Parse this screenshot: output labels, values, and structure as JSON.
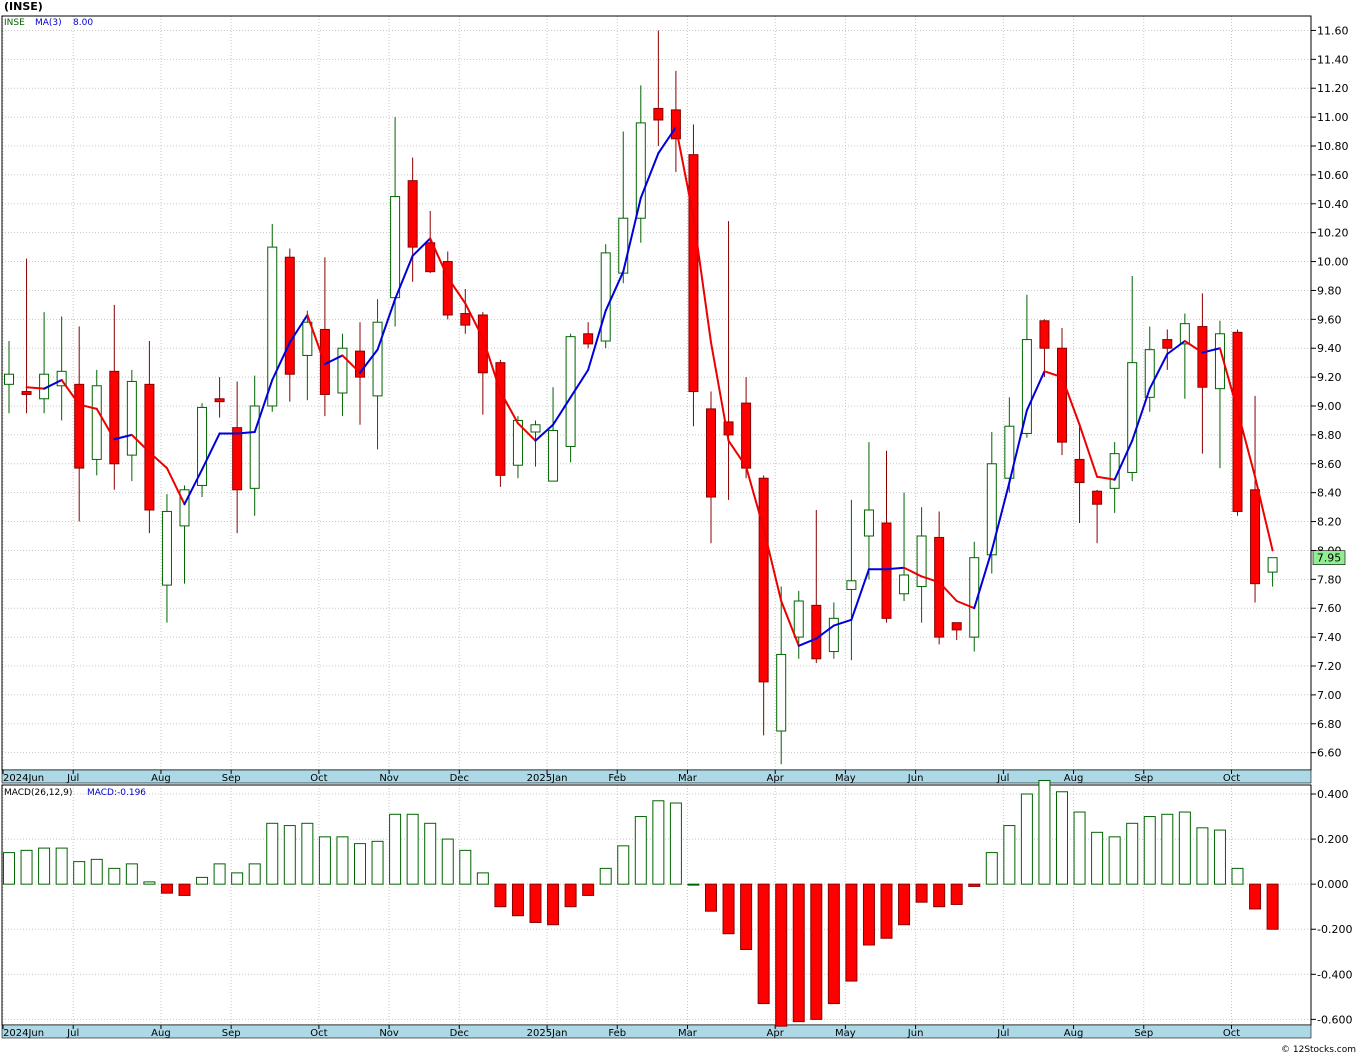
{
  "header": {
    "symbol_title": "(INSE)",
    "legend_symbol": "INSE",
    "legend_ma": "MA(3)",
    "legend_ma_value": "8.00",
    "macd_label": "MACD(26,12,9)",
    "macd_value_label": "MACD:-0.196",
    "last_price_label": "7.95",
    "watermark": "© 12Stocks.com"
  },
  "colors": {
    "up_candle_stroke": "#006400",
    "down_candle_fill": "#ff0000",
    "ma_up": "#0000dd",
    "ma_down": "#ee0000",
    "grid": "#c8c8c8",
    "axis_bar": "#add8e6",
    "last_price_box": "#90ee90"
  },
  "chart_data": [
    {
      "type": "candlestick",
      "title": "(INSE)",
      "series_name": "INSE",
      "overlay": {
        "name": "MA(3)",
        "last_value": 8.0
      },
      "ylim": [
        6.48,
        11.7
      ],
      "y_ticks": [
        "6.60",
        "6.80",
        "7.00",
        "7.20",
        "7.40",
        "7.60",
        "7.80",
        "8.00",
        "8.20",
        "8.40",
        "8.60",
        "8.80",
        "9.00",
        "9.20",
        "9.40",
        "9.60",
        "9.80",
        "10.00",
        "10.20",
        "10.40",
        "10.60",
        "10.80",
        "11.00",
        "11.20",
        "11.40",
        "11.60"
      ],
      "x_tick_labels": [
        "2024Jun",
        "Jul",
        "Aug",
        "Sep",
        "Oct",
        "Nov",
        "Dec",
        "2025Jan",
        "Feb",
        "Mar",
        "Apr",
        "May",
        "Jun",
        "Jul",
        "Aug",
        "Sep",
        "Oct"
      ],
      "x_tick_weeks": [
        0,
        4,
        9,
        13,
        18,
        22,
        26,
        31,
        35,
        39,
        44,
        48,
        52,
        57,
        61,
        65,
        70
      ],
      "last_price": 7.95,
      "weeks": [
        {
          "o": 9.15,
          "h": 9.45,
          "l": 8.95,
          "c": 9.22
        },
        {
          "o": 9.1,
          "h": 10.02,
          "l": 8.95,
          "c": 9.08
        },
        {
          "o": 9.05,
          "h": 9.65,
          "l": 8.95,
          "c": 9.22
        },
        {
          "o": 9.14,
          "h": 9.62,
          "l": 8.9,
          "c": 9.24
        },
        {
          "o": 9.15,
          "h": 9.55,
          "l": 8.2,
          "c": 8.57
        },
        {
          "o": 8.63,
          "h": 9.25,
          "l": 8.52,
          "c": 9.14
        },
        {
          "o": 9.24,
          "h": 9.7,
          "l": 8.42,
          "c": 8.6
        },
        {
          "o": 8.66,
          "h": 9.25,
          "l": 8.48,
          "c": 9.17
        },
        {
          "o": 9.15,
          "h": 9.45,
          "l": 8.12,
          "c": 8.28
        },
        {
          "o": 7.76,
          "h": 8.39,
          "l": 7.5,
          "c": 8.27
        },
        {
          "o": 8.17,
          "h": 8.45,
          "l": 7.77,
          "c": 8.42
        },
        {
          "o": 8.45,
          "h": 9.02,
          "l": 8.37,
          "c": 8.99
        },
        {
          "o": 9.05,
          "h": 9.2,
          "l": 8.92,
          "c": 9.03
        },
        {
          "o": 8.85,
          "h": 9.17,
          "l": 8.12,
          "c": 8.42
        },
        {
          "o": 8.43,
          "h": 9.21,
          "l": 8.24,
          "c": 9.0
        },
        {
          "o": 9.0,
          "h": 10.26,
          "l": 8.96,
          "c": 10.1
        },
        {
          "o": 10.03,
          "h": 10.09,
          "l": 9.03,
          "c": 9.22
        },
        {
          "o": 9.35,
          "h": 9.66,
          "l": 9.04,
          "c": 9.58
        },
        {
          "o": 9.53,
          "h": 10.03,
          "l": 8.93,
          "c": 9.08
        },
        {
          "o": 9.09,
          "h": 9.5,
          "l": 8.93,
          "c": 9.4
        },
        {
          "o": 9.38,
          "h": 9.58,
          "l": 8.87,
          "c": 9.2
        },
        {
          "o": 9.07,
          "h": 9.74,
          "l": 8.7,
          "c": 9.58
        },
        {
          "o": 9.75,
          "h": 11.0,
          "l": 9.55,
          "c": 10.45
        },
        {
          "o": 10.56,
          "h": 10.72,
          "l": 9.86,
          "c": 10.1
        },
        {
          "o": 10.13,
          "h": 10.35,
          "l": 9.92,
          "c": 9.93
        },
        {
          "o": 10.0,
          "h": 10.07,
          "l": 9.6,
          "c": 9.63
        },
        {
          "o": 9.64,
          "h": 9.81,
          "l": 9.5,
          "c": 9.56
        },
        {
          "o": 9.63,
          "h": 9.65,
          "l": 8.94,
          "c": 9.23
        },
        {
          "o": 9.3,
          "h": 9.32,
          "l": 8.44,
          "c": 8.52
        },
        {
          "o": 8.59,
          "h": 8.93,
          "l": 8.5,
          "c": 8.9
        },
        {
          "o": 8.82,
          "h": 8.9,
          "l": 8.58,
          "c": 8.87
        },
        {
          "o": 8.48,
          "h": 9.13,
          "l": 8.48,
          "c": 8.83
        },
        {
          "o": 8.72,
          "h": 9.5,
          "l": 8.61,
          "c": 9.48
        },
        {
          "o": 9.5,
          "h": 9.58,
          "l": 9.4,
          "c": 9.43
        },
        {
          "o": 9.45,
          "h": 10.12,
          "l": 9.4,
          "c": 10.06
        },
        {
          "o": 9.92,
          "h": 10.9,
          "l": 9.85,
          "c": 10.3
        },
        {
          "o": 10.3,
          "h": 11.22,
          "l": 10.13,
          "c": 10.96
        },
        {
          "o": 11.06,
          "h": 11.6,
          "l": 10.8,
          "c": 10.98
        },
        {
          "o": 11.05,
          "h": 11.32,
          "l": 10.62,
          "c": 10.85
        },
        {
          "o": 10.74,
          "h": 10.95,
          "l": 8.86,
          "c": 9.1
        },
        {
          "o": 8.98,
          "h": 9.1,
          "l": 8.05,
          "c": 8.37
        },
        {
          "o": 8.89,
          "h": 10.28,
          "l": 8.35,
          "c": 8.8
        },
        {
          "o": 9.02,
          "h": 9.2,
          "l": 8.5,
          "c": 8.57
        },
        {
          "o": 8.5,
          "h": 8.52,
          "l": 6.72,
          "c": 7.09
        },
        {
          "o": 6.75,
          "h": 7.75,
          "l": 6.52,
          "c": 7.28
        },
        {
          "o": 7.4,
          "h": 7.72,
          "l": 7.25,
          "c": 7.65
        },
        {
          "o": 7.62,
          "h": 8.28,
          "l": 7.22,
          "c": 7.25
        },
        {
          "o": 7.3,
          "h": 7.64,
          "l": 7.25,
          "c": 7.53
        },
        {
          "o": 7.73,
          "h": 8.35,
          "l": 7.24,
          "c": 7.79
        },
        {
          "o": 8.1,
          "h": 8.75,
          "l": 7.8,
          "c": 8.28
        },
        {
          "o": 8.19,
          "h": 8.69,
          "l": 7.5,
          "c": 7.53
        },
        {
          "o": 7.7,
          "h": 8.4,
          "l": 7.65,
          "c": 7.83
        },
        {
          "o": 7.75,
          "h": 8.3,
          "l": 7.5,
          "c": 8.1
        },
        {
          "o": 8.09,
          "h": 8.27,
          "l": 7.35,
          "c": 7.4
        },
        {
          "o": 7.5,
          "h": 7.5,
          "l": 7.38,
          "c": 7.45
        },
        {
          "o": 7.4,
          "h": 8.06,
          "l": 7.3,
          "c": 7.95
        },
        {
          "o": 7.97,
          "h": 8.82,
          "l": 7.84,
          "c": 8.6
        },
        {
          "o": 8.5,
          "h": 9.06,
          "l": 8.4,
          "c": 8.86
        },
        {
          "o": 8.81,
          "h": 9.77,
          "l": 8.78,
          "c": 9.46
        },
        {
          "o": 9.59,
          "h": 9.6,
          "l": 9.2,
          "c": 9.4
        },
        {
          "o": 9.4,
          "h": 9.54,
          "l": 8.66,
          "c": 8.75
        },
        {
          "o": 8.63,
          "h": 8.87,
          "l": 8.19,
          "c": 8.47
        },
        {
          "o": 8.41,
          "h": 8.42,
          "l": 8.05,
          "c": 8.32
        },
        {
          "o": 8.43,
          "h": 8.75,
          "l": 8.26,
          "c": 8.67
        },
        {
          "o": 8.54,
          "h": 9.9,
          "l": 8.48,
          "c": 9.3
        },
        {
          "o": 9.06,
          "h": 9.55,
          "l": 8.96,
          "c": 9.39
        },
        {
          "o": 9.46,
          "h": 9.53,
          "l": 9.25,
          "c": 9.4
        },
        {
          "o": 9.43,
          "h": 9.64,
          "l": 9.05,
          "c": 9.57
        },
        {
          "o": 9.55,
          "h": 9.78,
          "l": 8.67,
          "c": 9.13
        },
        {
          "o": 9.12,
          "h": 9.59,
          "l": 8.57,
          "c": 9.5
        },
        {
          "o": 9.51,
          "h": 9.53,
          "l": 8.24,
          "c": 8.27
        },
        {
          "o": 8.42,
          "h": 9.07,
          "l": 7.64,
          "c": 7.77
        },
        {
          "o": 7.85,
          "h": 7.95,
          "l": 7.75,
          "c": 7.95
        }
      ],
      "ma": [
        null,
        9.13,
        9.12,
        9.18,
        9.01,
        8.98,
        8.77,
        8.8,
        8.68,
        8.57,
        8.32,
        8.56,
        8.81,
        8.81,
        8.82,
        9.18,
        9.44,
        9.63,
        9.29,
        9.35,
        9.23,
        9.39,
        9.74,
        10.04,
        10.16,
        9.89,
        9.71,
        9.47,
        9.1,
        8.88,
        8.76,
        8.87,
        9.06,
        9.25,
        9.66,
        9.93,
        10.44,
        10.75,
        10.93,
        10.31,
        9.44,
        8.76,
        8.58,
        8.15,
        7.65,
        7.34,
        7.39,
        7.48,
        7.52,
        7.87,
        7.87,
        7.88,
        7.82,
        7.78,
        7.65,
        7.6,
        8.0,
        8.47,
        8.97,
        9.24,
        9.2,
        8.87,
        8.51,
        8.49,
        8.76,
        9.12,
        9.36,
        9.45,
        9.37,
        9.4,
        8.97,
        8.51,
        8.0
      ]
    },
    {
      "type": "bar",
      "title": "MACD(26,12,9)",
      "series_name": "MACD",
      "last_value": -0.196,
      "ylim": [
        -0.625,
        0.44
      ],
      "y_ticks": [
        "-0.600",
        "-0.400",
        "-0.200",
        "0.000",
        "0.200",
        "0.400"
      ],
      "values": [
        0.14,
        0.15,
        0.16,
        0.16,
        0.1,
        0.11,
        0.07,
        0.09,
        0.01,
        -0.04,
        -0.05,
        0.03,
        0.09,
        0.05,
        0.09,
        0.27,
        0.26,
        0.27,
        0.21,
        0.21,
        0.18,
        0.19,
        0.31,
        0.31,
        0.27,
        0.2,
        0.15,
        0.05,
        -0.1,
        -0.14,
        -0.17,
        -0.18,
        -0.1,
        -0.05,
        0.07,
        0.17,
        0.3,
        0.37,
        0.36,
        0.0,
        -0.12,
        -0.22,
        -0.29,
        -0.53,
        -0.63,
        -0.61,
        -0.6,
        -0.53,
        -0.43,
        -0.27,
        -0.24,
        -0.18,
        -0.08,
        -0.1,
        -0.09,
        -0.01,
        0.14,
        0.26,
        0.4,
        0.46,
        0.41,
        0.32,
        0.23,
        0.21,
        0.27,
        0.3,
        0.31,
        0.32,
        0.25,
        0.24,
        0.07,
        -0.11,
        -0.2
      ]
    }
  ]
}
